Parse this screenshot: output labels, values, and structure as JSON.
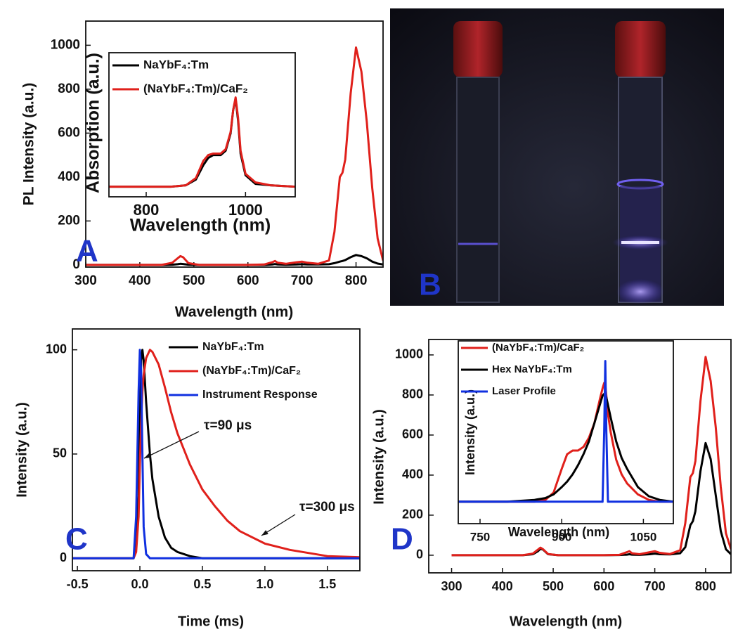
{
  "chart_data": [
    {
      "type": "line",
      "panel_label": "A",
      "x_label": "Wavelength (nm)",
      "y_label": "PL Intensity (a.u.)",
      "xlim": [
        300,
        850
      ],
      "ylim": [
        -10,
        1110
      ],
      "xticks": [
        300,
        400,
        500,
        600,
        700,
        800
      ],
      "yticks": [
        0,
        200,
        400,
        600,
        800,
        1000
      ],
      "x": [
        300,
        350,
        400,
        440,
        460,
        470,
        475,
        480,
        490,
        510,
        550,
        600,
        630,
        645,
        650,
        655,
        670,
        690,
        700,
        710,
        730,
        750,
        760,
        770,
        775,
        780,
        790,
        800,
        810,
        820,
        830,
        840,
        850
      ],
      "series": [
        {
          "color": "#000000",
          "values": [
            0,
            0,
            0,
            0,
            1,
            3,
            5,
            4,
            1,
            0,
            0,
            0,
            0,
            2,
            4,
            2,
            1,
            2,
            3,
            2,
            2,
            3,
            8,
            15,
            18,
            22,
            35,
            45,
            40,
            30,
            15,
            6,
            2
          ]
        },
        {
          "color": "#e0201b",
          "values": [
            0,
            0,
            0,
            0,
            10,
            30,
            40,
            35,
            8,
            0,
            0,
            0,
            2,
            12,
            18,
            10,
            5,
            12,
            15,
            10,
            5,
            20,
            150,
            400,
            420,
            480,
            780,
            990,
            880,
            650,
            350,
            120,
            20
          ]
        }
      ]
    },
    {
      "type": "line",
      "x_label": "Wavelength (nm)",
      "y_label": "Absorption (a.u.)",
      "xlim": [
        725,
        1100
      ],
      "ylim": [
        0,
        1
      ],
      "xticks": [
        800,
        1000
      ],
      "x": [
        725,
        800,
        850,
        880,
        900,
        915,
        925,
        935,
        950,
        960,
        970,
        975,
        980,
        985,
        990,
        1000,
        1020,
        1050,
        1100
      ],
      "series": [
        {
          "name": "NaYbF₄:Tm",
          "color": "#000000",
          "values": [
            0.07,
            0.07,
            0.07,
            0.08,
            0.12,
            0.22,
            0.27,
            0.29,
            0.29,
            0.32,
            0.44,
            0.6,
            0.68,
            0.53,
            0.3,
            0.15,
            0.09,
            0.08,
            0.07
          ]
        },
        {
          "name": "(NaYbF₄:Tm)/CaF₂",
          "color": "#e0201b",
          "values": [
            0.07,
            0.07,
            0.07,
            0.08,
            0.13,
            0.25,
            0.29,
            0.3,
            0.3,
            0.33,
            0.45,
            0.6,
            0.69,
            0.55,
            0.32,
            0.16,
            0.1,
            0.08,
            0.07
          ]
        }
      ]
    },
    {
      "type": "line",
      "panel_label": "C",
      "x_label": "Time (ms)",
      "y_label": "Intensity (a.u.)",
      "annotations": [
        "τ=90 μs",
        "τ=300 μs"
      ],
      "xlim": [
        -0.54,
        1.76
      ],
      "ylim": [
        -6,
        110
      ],
      "xticks": [
        -0.5,
        {
          "value": 0,
          "label": "0.0"
        },
        0.5,
        {
          "value": 1,
          "label": "1.0"
        },
        1.5
      ],
      "yticks": [
        0,
        50,
        100
      ],
      "x": [
        -0.54,
        -0.1,
        -0.05,
        -0.03,
        -0.01,
        0,
        0.01,
        0.02,
        0.03,
        0.05,
        0.08,
        0.1,
        0.15,
        0.2,
        0.25,
        0.3,
        0.4,
        0.5,
        0.6,
        0.7,
        0.8,
        1.0,
        1.2,
        1.5,
        1.76
      ],
      "series": [
        {
          "name": "NaYbF₄:Tm",
          "color": "#000000",
          "values": [
            0,
            0,
            0,
            5,
            30,
            70,
            95,
            100,
            95,
            75,
            50,
            38,
            20,
            10,
            5,
            3,
            1,
            0,
            0,
            0,
            0,
            0,
            0,
            0,
            0
          ]
        },
        {
          "name": "(NaYbF₄:Tm)/CaF₂",
          "color": "#e0201b",
          "values": [
            0,
            0,
            0,
            3,
            20,
            45,
            65,
            80,
            88,
            96,
            100,
            99,
            93,
            82,
            70,
            60,
            45,
            33,
            25,
            18,
            13,
            7,
            4,
            1,
            0.5
          ]
        },
        {
          "name": "Instrument Response",
          "color": "#1030e0",
          "values": [
            0,
            0,
            0,
            20,
            80,
            100,
            90,
            50,
            15,
            2,
            0,
            0,
            0,
            0,
            0,
            0,
            0,
            0,
            0,
            0,
            0,
            0,
            0,
            0,
            0
          ]
        }
      ]
    },
    {
      "type": "line",
      "panel_label": "D",
      "x_label": "Wavelength (nm)",
      "y_label": "Intensity (a.u.)",
      "xlim": [
        255,
        850
      ],
      "ylim": [
        -88,
        1077
      ],
      "xticks": [
        300,
        400,
        500,
        600,
        700,
        800
      ],
      "yticks": [
        0,
        200,
        400,
        600,
        800,
        1000
      ],
      "x": [
        300,
        350,
        400,
        440,
        460,
        470,
        475,
        480,
        490,
        510,
        550,
        600,
        630,
        645,
        650,
        655,
        670,
        690,
        700,
        710,
        730,
        750,
        760,
        770,
        775,
        780,
        790,
        800,
        810,
        820,
        830,
        840,
        850
      ],
      "series": [
        {
          "color": "#000000",
          "values": [
            0,
            0,
            0,
            0,
            5,
            20,
            32,
            28,
            5,
            0,
            0,
            0,
            1,
            3,
            5,
            3,
            2,
            5,
            8,
            5,
            4,
            10,
            40,
            150,
            170,
            220,
            420,
            560,
            480,
            300,
            120,
            30,
            5
          ]
        },
        {
          "color": "#e0201b",
          "values": [
            0,
            0,
            0,
            0,
            8,
            28,
            38,
            30,
            6,
            0,
            0,
            0,
            2,
            15,
            20,
            10,
            5,
            15,
            20,
            12,
            6,
            25,
            160,
            390,
            410,
            470,
            770,
            990,
            870,
            640,
            340,
            110,
            30
          ]
        }
      ]
    },
    {
      "type": "line",
      "x_label": "Wavelength (nm)",
      "y_label": "Intensity (a.u.)",
      "xlim": [
        710,
        1105
      ],
      "ylim": [
        0,
        1
      ],
      "xticks": [
        750,
        900,
        1050
      ],
      "x": [
        710,
        800,
        850,
        870,
        885,
        900,
        910,
        920,
        930,
        940,
        950,
        960,
        970,
        975,
        978,
        980,
        982,
        985,
        990,
        1000,
        1010,
        1020,
        1040,
        1060,
        1080,
        1105
      ],
      "series": [
        {
          "name": "(NaYbF₄:Tm)/CaF₂",
          "color": "#e0201b",
          "values": [
            0.12,
            0.12,
            0.12,
            0.13,
            0.17,
            0.3,
            0.38,
            0.4,
            0.4,
            0.42,
            0.47,
            0.55,
            0.68,
            0.74,
            0.77,
            0.76,
            0.7,
            0.6,
            0.5,
            0.35,
            0.27,
            0.22,
            0.16,
            0.13,
            0.12,
            0.12
          ]
        },
        {
          "name": "Hex NaYbF₄:Tm",
          "color": "#000000",
          "values": [
            0.12,
            0.12,
            0.13,
            0.14,
            0.16,
            0.2,
            0.23,
            0.27,
            0.32,
            0.38,
            0.45,
            0.55,
            0.65,
            0.7,
            0.71,
            0.71,
            0.69,
            0.65,
            0.58,
            0.45,
            0.36,
            0.3,
            0.2,
            0.15,
            0.13,
            0.12
          ]
        },
        {
          "name": "Laser Profile",
          "color": "#1030e0",
          "values": [
            0.12,
            0.12,
            0.12,
            0.12,
            0.12,
            0.12,
            0.12,
            0.12,
            0.12,
            0.12,
            0.12,
            0.12,
            0.12,
            0.12,
            0.5,
            0.89,
            0.5,
            0.12,
            0.12,
            0.12,
            0.12,
            0.12,
            0.12,
            0.12,
            0.12,
            0.12
          ]
        }
      ]
    }
  ],
  "photo": {
    "panel_label": "B"
  }
}
